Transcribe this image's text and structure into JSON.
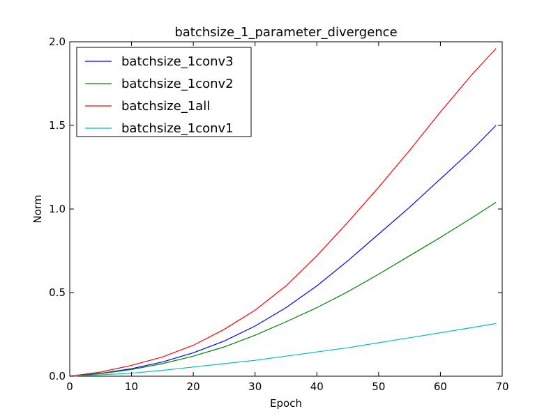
{
  "chart_data": {
    "type": "line",
    "title": "batchsize_1_parameter_divergence",
    "xlabel": "Epoch",
    "ylabel": "Norm",
    "xlim": [
      0,
      70
    ],
    "ylim": [
      0.0,
      2.0
    ],
    "xticks": [
      "0",
      "10",
      "20",
      "30",
      "40",
      "50",
      "60",
      "70"
    ],
    "yticks": [
      "0.0",
      "0.5",
      "1.0",
      "1.5",
      "2.0"
    ],
    "grid": false,
    "legend_position": "top-left",
    "x": [
      0,
      5,
      10,
      15,
      20,
      25,
      30,
      35,
      40,
      45,
      50,
      55,
      60,
      65,
      69
    ],
    "series": [
      {
        "name": "batchsize_1conv3",
        "color": "#0000ff",
        "values": [
          0.0,
          0.017,
          0.045,
          0.085,
          0.14,
          0.21,
          0.3,
          0.41,
          0.54,
          0.69,
          0.85,
          1.01,
          1.18,
          1.35,
          1.5
        ]
      },
      {
        "name": "batchsize_1conv2",
        "color": "#008000",
        "values": [
          0.0,
          0.015,
          0.04,
          0.075,
          0.12,
          0.175,
          0.245,
          0.325,
          0.41,
          0.505,
          0.61,
          0.72,
          0.83,
          0.945,
          1.04
        ]
      },
      {
        "name": "batchsize_1all",
        "color": "#ff0000",
        "values": [
          0.0,
          0.025,
          0.065,
          0.115,
          0.185,
          0.28,
          0.395,
          0.54,
          0.72,
          0.92,
          1.13,
          1.35,
          1.58,
          1.8,
          1.96
        ]
      },
      {
        "name": "batchsize_1conv1",
        "color": "#00bfbf",
        "values": [
          0.0,
          0.008,
          0.018,
          0.035,
          0.055,
          0.075,
          0.095,
          0.12,
          0.145,
          0.17,
          0.2,
          0.23,
          0.26,
          0.29,
          0.315
        ]
      }
    ]
  }
}
